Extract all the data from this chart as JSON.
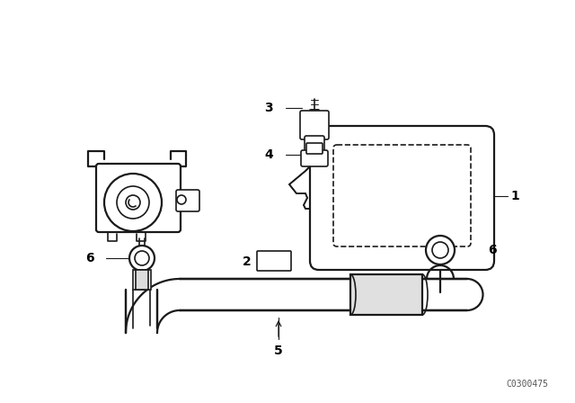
{
  "background_color": "#ffffff",
  "line_color": "#1a1a1a",
  "text_color": "#000000",
  "diagram_code": "C0300475",
  "label_fontsize": 10,
  "code_fontsize": 7
}
